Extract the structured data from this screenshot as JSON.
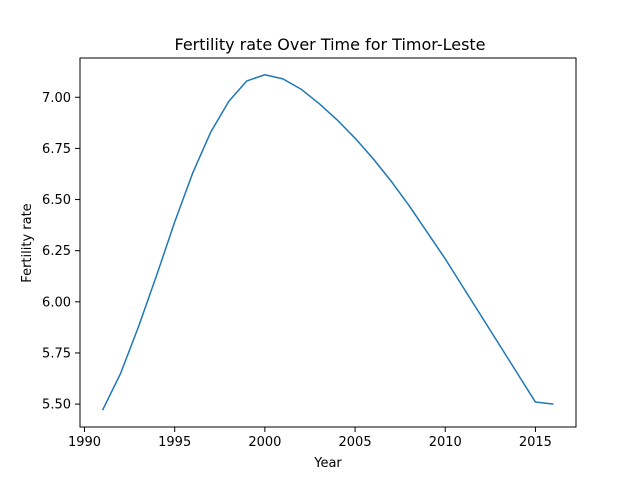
{
  "chart_data": {
    "type": "line",
    "title": "Fertility rate Over Time for Timor-Leste",
    "xlabel": "Year",
    "ylabel": "Fertility rate",
    "xlim": [
      1989.75,
      2017.25
    ],
    "ylim": [
      5.388,
      7.192
    ],
    "x_ticks": [
      1990,
      1995,
      2000,
      2005,
      2010,
      2015
    ],
    "x_tick_labels": [
      "1990",
      "1995",
      "2000",
      "2005",
      "2010",
      "2015"
    ],
    "y_ticks": [
      5.5,
      5.75,
      6.0,
      6.25,
      6.5,
      6.75,
      7.0
    ],
    "y_tick_labels": [
      "5.50",
      "5.75",
      "6.00",
      "6.25",
      "6.50",
      "6.75",
      "7.00"
    ],
    "grid": false,
    "series": [
      {
        "color": "#1f77b4",
        "x": [
          1991,
          1992,
          1993,
          1994,
          1995,
          1996,
          1997,
          1998,
          1999,
          2000,
          2001,
          2002,
          2003,
          2004,
          2005,
          2006,
          2007,
          2008,
          2009,
          2010,
          2011,
          2012,
          2013,
          2014,
          2015,
          2016
        ],
        "y": [
          5.47,
          5.65,
          5.88,
          6.13,
          6.39,
          6.63,
          6.83,
          6.98,
          7.08,
          7.11,
          7.09,
          7.04,
          6.97,
          6.89,
          6.8,
          6.7,
          6.59,
          6.47,
          6.34,
          6.21,
          6.07,
          5.93,
          5.79,
          5.65,
          5.51,
          5.5
        ]
      }
    ]
  }
}
